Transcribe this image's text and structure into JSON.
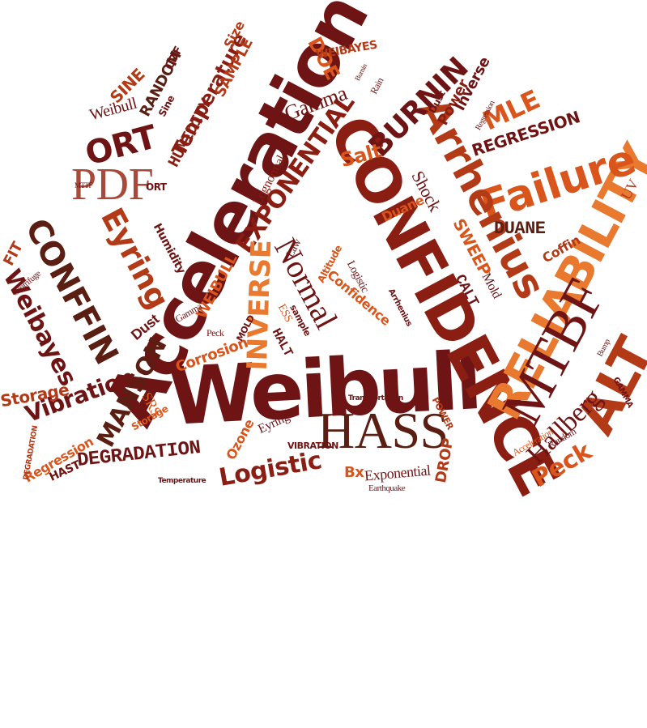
{
  "palette": {
    "dark_red": "#6e1414",
    "maroon": "#8a1e12",
    "brick": "#b33a17",
    "orange": "#d9551c",
    "light_orange": "#e8792e",
    "brown": "#5a1e12",
    "tan": "#c96a2c"
  },
  "words": [
    {
      "text": "Weibull"
    },
    {
      "text": "Acceleration"
    },
    {
      "text": "CONFIDENCE"
    },
    {
      "text": "RELIABILITY"
    },
    {
      "text": "MTBF"
    },
    {
      "text": "HASS"
    },
    {
      "text": "ALT"
    },
    {
      "text": "Failure"
    },
    {
      "text": "Arrhenius"
    },
    {
      "text": "PDF"
    },
    {
      "text": "Normal"
    },
    {
      "text": "EXPONENTIAL"
    },
    {
      "text": "INVERSE"
    },
    {
      "text": "BURNIN"
    },
    {
      "text": "CONFFIN"
    },
    {
      "text": "Eyring"
    },
    {
      "text": "ORT"
    },
    {
      "text": "Hallberg"
    },
    {
      "text": "DEGRADATION"
    },
    {
      "text": "MANSON"
    },
    {
      "text": "Vibration"
    },
    {
      "text": "Logistic"
    },
    {
      "text": "Peck"
    },
    {
      "text": "Weibayes"
    },
    {
      "text": "Gamma"
    },
    {
      "text": "Temperature"
    },
    {
      "text": "HUMIDITY"
    },
    {
      "text": "RANDOM"
    },
    {
      "text": "SINE"
    },
    {
      "text": "SAMPLE"
    },
    {
      "text": "DOE"
    },
    {
      "text": "MLE"
    },
    {
      "text": "REGRESSION"
    },
    {
      "text": "Shock"
    },
    {
      "text": "Salt"
    },
    {
      "text": "DUANE"
    },
    {
      "text": "SWEEP"
    },
    {
      "text": "Coffin"
    },
    {
      "text": "Duane"
    },
    {
      "text": "Dust"
    },
    {
      "text": "Corrosion"
    },
    {
      "text": "Storage"
    },
    {
      "text": "Regression"
    },
    {
      "text": "HAST"
    },
    {
      "text": "Exponential"
    },
    {
      "text": "Bx"
    },
    {
      "text": "DROP"
    },
    {
      "text": "CALT"
    },
    {
      "text": "SRS"
    },
    {
      "text": "Ozone"
    },
    {
      "text": "Confidence"
    },
    {
      "text": "Mold"
    },
    {
      "text": "Lognormal"
    },
    {
      "text": "WEIBULL"
    },
    {
      "text": "Power"
    },
    {
      "text": "Inverse"
    },
    {
      "text": "WEIBAYES"
    },
    {
      "text": "CDF"
    },
    {
      "text": "Size"
    },
    {
      "text": "FIT"
    },
    {
      "text": "ESS"
    },
    {
      "text": "HALT"
    },
    {
      "text": "Law"
    },
    {
      "text": "Sine"
    },
    {
      "text": "Random"
    },
    {
      "text": "VIBRATION"
    },
    {
      "text": "Earthquake"
    },
    {
      "text": "UV"
    },
    {
      "text": "Humidity"
    },
    {
      "text": "Centrifuge"
    },
    {
      "text": "Altitude"
    },
    {
      "text": "Logistic"
    },
    {
      "text": "POWER"
    },
    {
      "text": "Transportation"
    },
    {
      "text": "Temperature"
    },
    {
      "text": "Bump"
    },
    {
      "text": "Rain"
    },
    {
      "text": "Gamma"
    },
    {
      "text": "Burnin"
    },
    {
      "text": "Eyring"
    },
    {
      "text": "GAMMA"
    },
    {
      "text": "Acceleration"
    },
    {
      "text": "Regression"
    },
    {
      "text": "MOLD"
    },
    {
      "text": "sample"
    },
    {
      "text": "Weibull"
    },
    {
      "text": "DEGRADATION"
    },
    {
      "text": "Dust"
    },
    {
      "text": "ORT"
    },
    {
      "text": "MTTF"
    },
    {
      "text": "Storage"
    },
    {
      "text": "Peck"
    },
    {
      "text": "Arrhenius"
    }
  ]
}
